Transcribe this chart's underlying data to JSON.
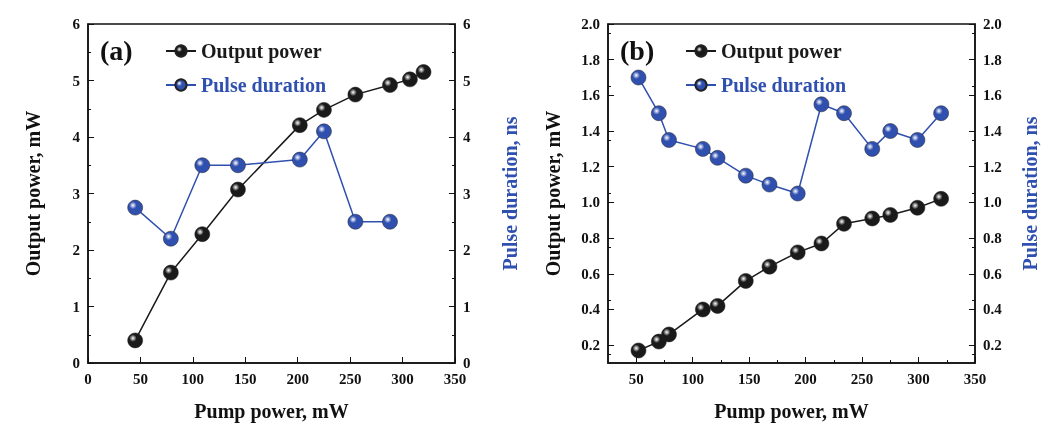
{
  "chart_data": [
    {
      "type": "line",
      "xlabel": "Pump power, mW",
      "ylabel": "Output power, mW",
      "y2label": "Pulse duration, ns",
      "annotations": [
        "(a)"
      ],
      "xlim": [
        0,
        350
      ],
      "xticks": [
        0,
        50,
        100,
        150,
        200,
        250,
        300,
        350
      ],
      "ylim": [
        0,
        6
      ],
      "yticks": [
        0,
        1,
        2,
        3,
        4,
        5,
        6
      ],
      "y2lim": [
        0,
        6
      ],
      "y2ticks": [
        0,
        1,
        2,
        3,
        4,
        5,
        6
      ],
      "legend": "top left",
      "marker": "circle",
      "line_style": "solid",
      "grid": false,
      "series": [
        {
          "name": "Output power",
          "color": "#1a1a1a",
          "x": [
            45,
            79,
            109,
            143,
            202,
            225,
            255,
            288,
            307,
            320
          ],
          "values": [
            0.4,
            1.6,
            2.28,
            3.07,
            4.21,
            4.48,
            4.75,
            4.92,
            5.02,
            5.15
          ]
        },
        {
          "name": "Pulse duration",
          "color": "#3050b0",
          "axis": "y2",
          "x": [
            45,
            79,
            109,
            143,
            202,
            225,
            255,
            288
          ],
          "values": [
            2.75,
            2.2,
            3.5,
            3.5,
            3.6,
            4.1,
            2.5,
            2.5
          ]
        }
      ]
    },
    {
      "type": "line",
      "xlabel": "Pump power, mW",
      "ylabel": "Output power, mW",
      "y2label": "Pulse duration, ns",
      "annotations": [
        "(b)"
      ],
      "xlim": [
        25,
        350
      ],
      "xticks": [
        50,
        100,
        150,
        200,
        250,
        300,
        350
      ],
      "ylim": [
        0.1,
        2.0
      ],
      "yticks": [
        {
          "value": 0.2,
          "label": "0.2"
        },
        {
          "value": 0.4,
          "label": "0.4"
        },
        {
          "value": 0.6,
          "label": "0.6"
        },
        {
          "value": 0.8,
          "label": "0.8"
        },
        {
          "value": 1.0,
          "label": "1.0"
        },
        {
          "value": 1.2,
          "label": "1.2"
        },
        {
          "value": 1.4,
          "label": "1.4"
        },
        {
          "value": 1.6,
          "label": "1.6"
        },
        {
          "value": 1.8,
          "label": "1.8"
        },
        {
          "value": 2.0,
          "label": "2.0"
        }
      ],
      "y2lim": [
        0.1,
        2.0
      ],
      "y2ticks": [
        {
          "value": 0.2,
          "label": "0.2"
        },
        {
          "value": 0.4,
          "label": "0.4"
        },
        {
          "value": 0.6,
          "label": "0.6"
        },
        {
          "value": 0.8,
          "label": "0.8"
        },
        {
          "value": 1.0,
          "label": "1.0"
        },
        {
          "value": 1.2,
          "label": "1.2"
        },
        {
          "value": 1.4,
          "label": "1.4"
        },
        {
          "value": 1.6,
          "label": "1.6"
        },
        {
          "value": 1.8,
          "label": "1.8"
        },
        {
          "value": 2.0,
          "label": "2.0"
        }
      ],
      "legend": "top left",
      "marker": "circle",
      "line_style": "solid",
      "grid": false,
      "series": [
        {
          "name": "Output power",
          "color": "#1a1a1a",
          "x": [
            52,
            70,
            79,
            109,
            122,
            147,
            168,
            193,
            214,
            234,
            259,
            275,
            299,
            320
          ],
          "values": [
            0.17,
            0.22,
            0.26,
            0.4,
            0.42,
            0.56,
            0.64,
            0.72,
            0.77,
            0.88,
            0.91,
            0.93,
            0.97,
            1.02
          ]
        },
        {
          "name": "Pulse duration",
          "color": "#3050b0",
          "axis": "y2",
          "x": [
            52,
            70,
            79,
            109,
            122,
            147,
            168,
            193,
            214,
            234,
            259,
            275,
            299,
            320
          ],
          "values": [
            1.7,
            1.5,
            1.35,
            1.3,
            1.25,
            1.15,
            1.1,
            1.05,
            1.55,
            1.5,
            1.3,
            1.4,
            1.35,
            1.5
          ]
        }
      ]
    }
  ]
}
